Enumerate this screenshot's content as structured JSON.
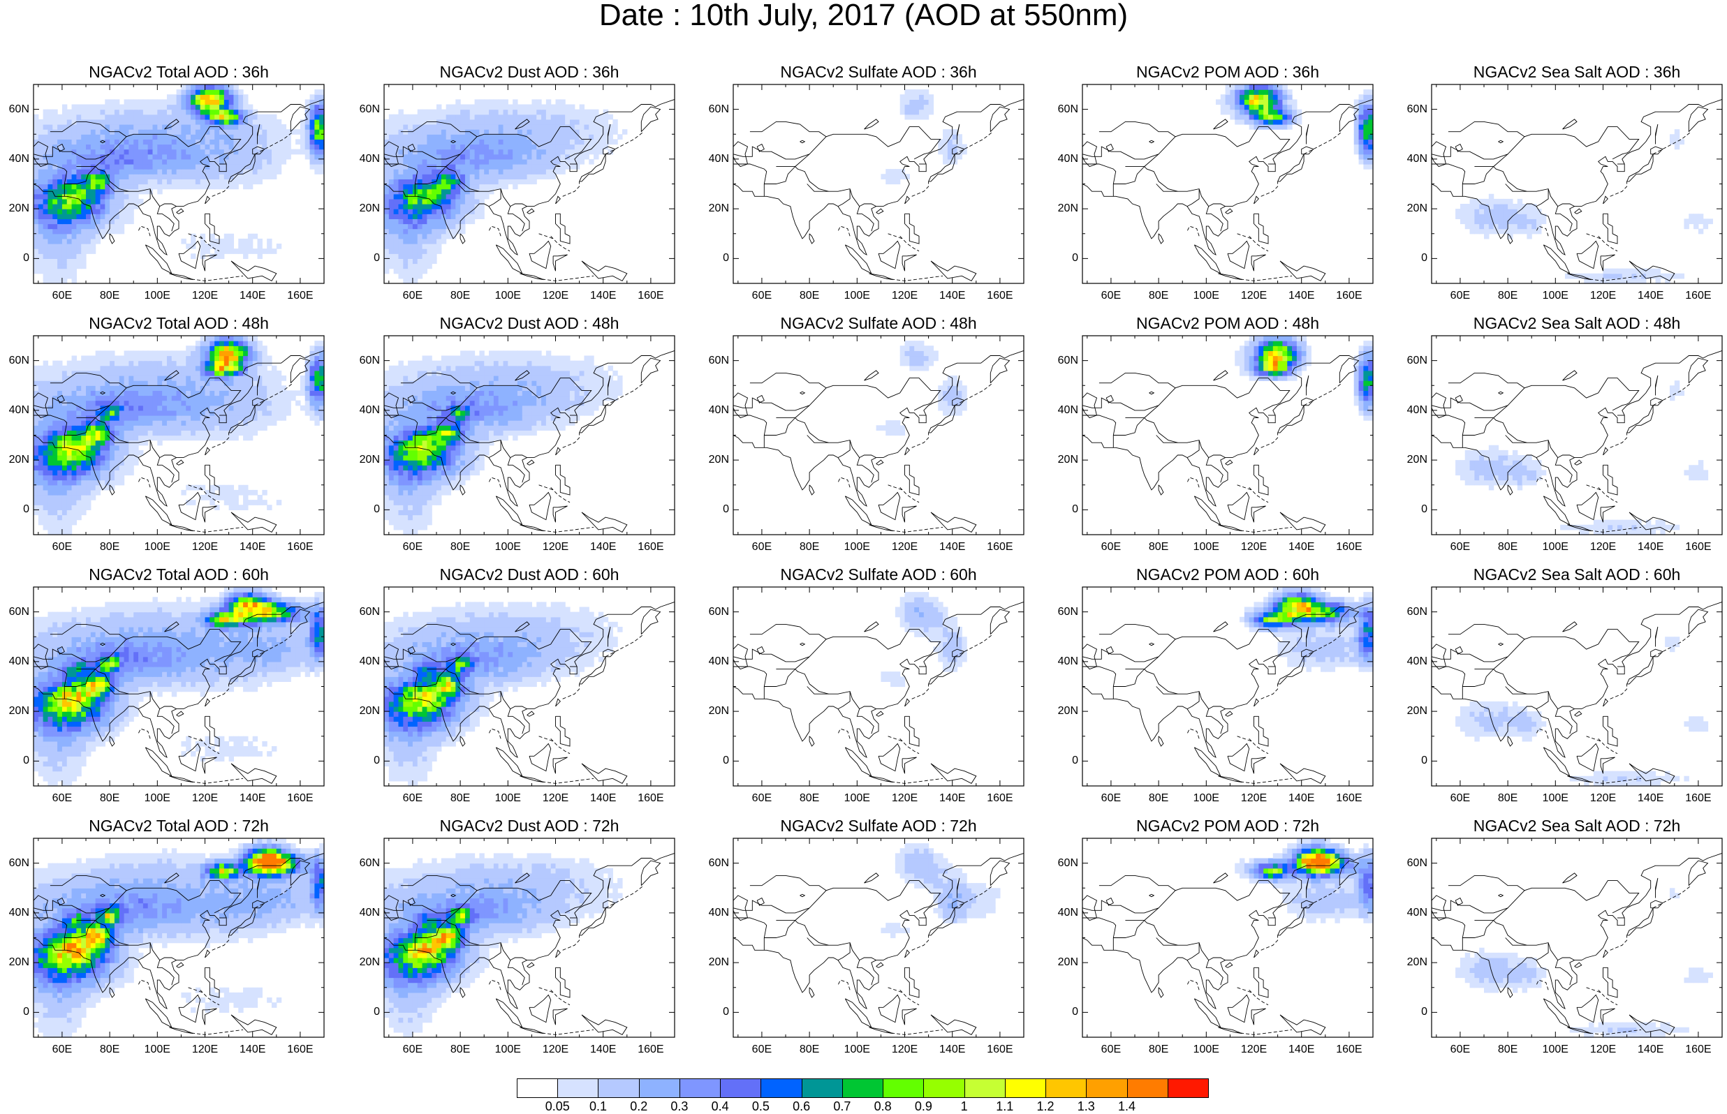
{
  "title": "Date : 10th July, 2017 (AOD at 550nm)",
  "axes": {
    "lat_ticks": [
      "60N",
      "40N",
      "20N",
      "0"
    ],
    "lon_ticks": [
      "60E",
      "80E",
      "100E",
      "120E",
      "140E",
      "160E"
    ]
  },
  "panels": [
    {
      "title": "NGACv2 Total AOD : 36h",
      "species": "total",
      "hour": "36h"
    },
    {
      "title": "NGACv2 Dust AOD : 36h",
      "species": "dust",
      "hour": "36h"
    },
    {
      "title": "NGACv2 Sulfate AOD : 36h",
      "species": "sulfate",
      "hour": "36h"
    },
    {
      "title": "NGACv2 POM AOD : 36h",
      "species": "pom",
      "hour": "36h"
    },
    {
      "title": "NGACv2 Sea Salt AOD : 36h",
      "species": "seasalt",
      "hour": "36h"
    },
    {
      "title": "NGACv2 Total AOD : 48h",
      "species": "total",
      "hour": "48h"
    },
    {
      "title": "NGACv2 Dust AOD : 48h",
      "species": "dust",
      "hour": "48h"
    },
    {
      "title": "NGACv2 Sulfate AOD : 48h",
      "species": "sulfate",
      "hour": "48h"
    },
    {
      "title": "NGACv2 POM AOD : 48h",
      "species": "pom",
      "hour": "48h"
    },
    {
      "title": "NGACv2 Sea Salt AOD : 48h",
      "species": "seasalt",
      "hour": "48h"
    },
    {
      "title": "NGACv2 Total AOD : 60h",
      "species": "total",
      "hour": "60h"
    },
    {
      "title": "NGACv2 Dust AOD : 60h",
      "species": "dust",
      "hour": "60h"
    },
    {
      "title": "NGACv2 Sulfate AOD : 60h",
      "species": "sulfate",
      "hour": "60h"
    },
    {
      "title": "NGACv2 POM AOD : 60h",
      "species": "pom",
      "hour": "60h"
    },
    {
      "title": "NGACv2 Sea Salt AOD : 60h",
      "species": "seasalt",
      "hour": "60h"
    },
    {
      "title": "NGACv2 Total AOD : 72h",
      "species": "total",
      "hour": "72h"
    },
    {
      "title": "NGACv2 Dust AOD : 72h",
      "species": "dust",
      "hour": "72h"
    },
    {
      "title": "NGACv2 Sulfate AOD : 72h",
      "species": "sulfate",
      "hour": "72h"
    },
    {
      "title": "NGACv2 POM AOD : 72h",
      "species": "pom",
      "hour": "72h"
    },
    {
      "title": "NGACv2 Sea Salt  AOD : 72h",
      "species": "seasalt",
      "hour": "72h"
    }
  ],
  "colorbar": {
    "labels": [
      "0.05",
      "0.1",
      "0.2",
      "0.3",
      "0.4",
      "0.5",
      "0.6",
      "0.7",
      "0.8",
      "0.9",
      "1",
      "1.1",
      "1.2",
      "1.3",
      "1.4"
    ],
    "colors": [
      "#ffffff",
      "#d6e2ff",
      "#b5c9ff",
      "#8eb2ff",
      "#7f96ff",
      "#6370f8",
      "#0063ff",
      "#009696",
      "#00c633",
      "#63ff00",
      "#96ff00",
      "#c6ff33",
      "#ffff00",
      "#ffc600",
      "#ffa000",
      "#ff7c00",
      "#ff1900"
    ]
  }
}
